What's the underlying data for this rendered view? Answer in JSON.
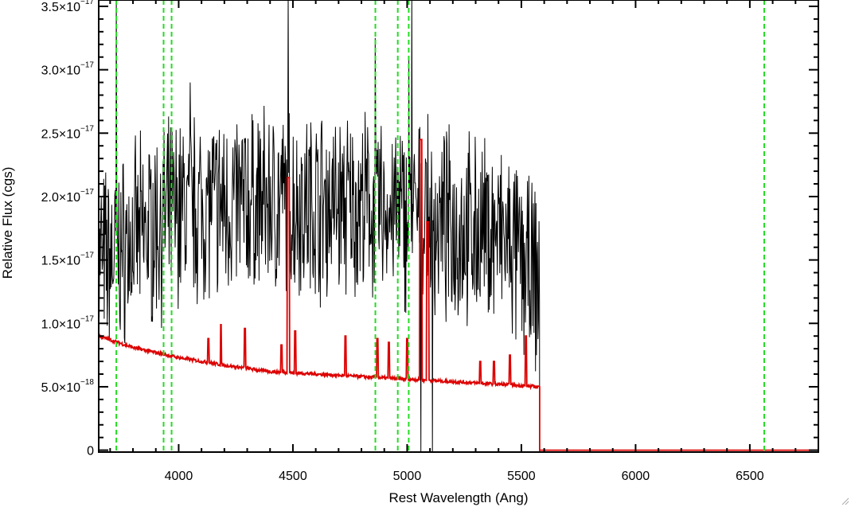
{
  "chart_data": {
    "type": "line",
    "title": "",
    "xlabel": "Rest Wavelength (Ang)",
    "ylabel": "Relative Flux (cgs)",
    "xlim": [
      3650,
      6800
    ],
    "ylim": [
      -1.5e-19,
      3.55e-17
    ],
    "grid": false,
    "legend": "none",
    "x_ticks": [
      {
        "value": 4000,
        "label": "4000"
      },
      {
        "value": 4500,
        "label": "4500"
      },
      {
        "value": 5000,
        "label": "5000"
      },
      {
        "value": 5500,
        "label": "5500"
      },
      {
        "value": 6000,
        "label": "6000"
      },
      {
        "value": 6500,
        "label": "6500"
      }
    ],
    "y_ticks": [
      {
        "value": 0,
        "mant": "0",
        "exp": ""
      },
      {
        "value": 5e-18,
        "mant": "5.0×10",
        "exp": "−18"
      },
      {
        "value": 1e-17,
        "mant": "1.0×10",
        "exp": "−17"
      },
      {
        "value": 1.5e-17,
        "mant": "1.5×10",
        "exp": "−17"
      },
      {
        "value": 2e-17,
        "mant": "2.0×10",
        "exp": "−17"
      },
      {
        "value": 2.5e-17,
        "mant": "2.5×10",
        "exp": "−17"
      },
      {
        "value": 3e-17,
        "mant": "3.0×10",
        "exp": "−17"
      },
      {
        "value": 3.5e-17,
        "mant": "3.5×10",
        "exp": "−17"
      }
    ],
    "vertical_lines": {
      "color": "#22dd22",
      "style": "dashed",
      "x": [
        3727,
        3934,
        3969,
        4861,
        4959,
        5007,
        6563
      ]
    },
    "series": [
      {
        "color": "#000000",
        "x_range": [
          3650,
          5580
        ],
        "continuum": [
          [
            3650,
            1.45e-17
          ],
          [
            3800,
            1.65e-17
          ],
          [
            4000,
            1.9e-17
          ],
          [
            4300,
            1.95e-17
          ],
          [
            4600,
            1.95e-17
          ],
          [
            4900,
            1.9e-17
          ],
          [
            5200,
            1.75e-17
          ],
          [
            5400,
            1.7e-17
          ],
          [
            5580,
            1.3e-17
          ]
        ],
        "spikes": [
          [
            3727,
            3.6e-17
          ],
          [
            3660,
            2e-17
          ],
          [
            4480,
            3.6e-17
          ],
          [
            4861,
            3.25e-17
          ],
          [
            5007,
            3.1e-17
          ],
          [
            5020,
            3.6e-17
          ],
          [
            5060,
            -1.5e-19
          ],
          [
            5080,
            2.3e-17
          ],
          [
            5110,
            -1.5e-19
          ],
          [
            4050,
            2.9e-17
          ]
        ]
      },
      {
        "color": "#dd0000",
        "x_range": [
          3650,
          6800
        ],
        "model": [
          [
            3650,
            9e-18
          ],
          [
            3800,
            8.1e-18
          ],
          [
            4000,
            7.3e-18
          ],
          [
            4200,
            6.7e-18
          ],
          [
            4400,
            6.2e-18
          ],
          [
            4600,
            6e-18
          ],
          [
            4800,
            5.8e-18
          ],
          [
            5000,
            5.6e-18
          ],
          [
            5200,
            5.4e-18
          ],
          [
            5400,
            5.2e-18
          ],
          [
            5575,
            5e-18
          ],
          [
            5580,
            0
          ],
          [
            6800,
            0
          ]
        ],
        "emission_lines": [
          [
            4130,
            8.8e-18
          ],
          [
            4185,
            9.9e-18
          ],
          [
            4290,
            9.6e-18
          ],
          [
            4450,
            8.3e-18
          ],
          [
            4480,
            2.15e-17
          ],
          [
            4510,
            9.4e-18
          ],
          [
            4730,
            9e-18
          ],
          [
            4870,
            8.8e-18
          ],
          [
            4920,
            8.5e-18
          ],
          [
            5000,
            8.8e-18
          ],
          [
            5060,
            2.45e-17
          ],
          [
            5090,
            1.8e-17
          ],
          [
            5320,
            7e-18
          ],
          [
            5380,
            7e-18
          ],
          [
            5450,
            7.5e-18
          ],
          [
            5520,
            9e-18
          ]
        ]
      }
    ]
  }
}
